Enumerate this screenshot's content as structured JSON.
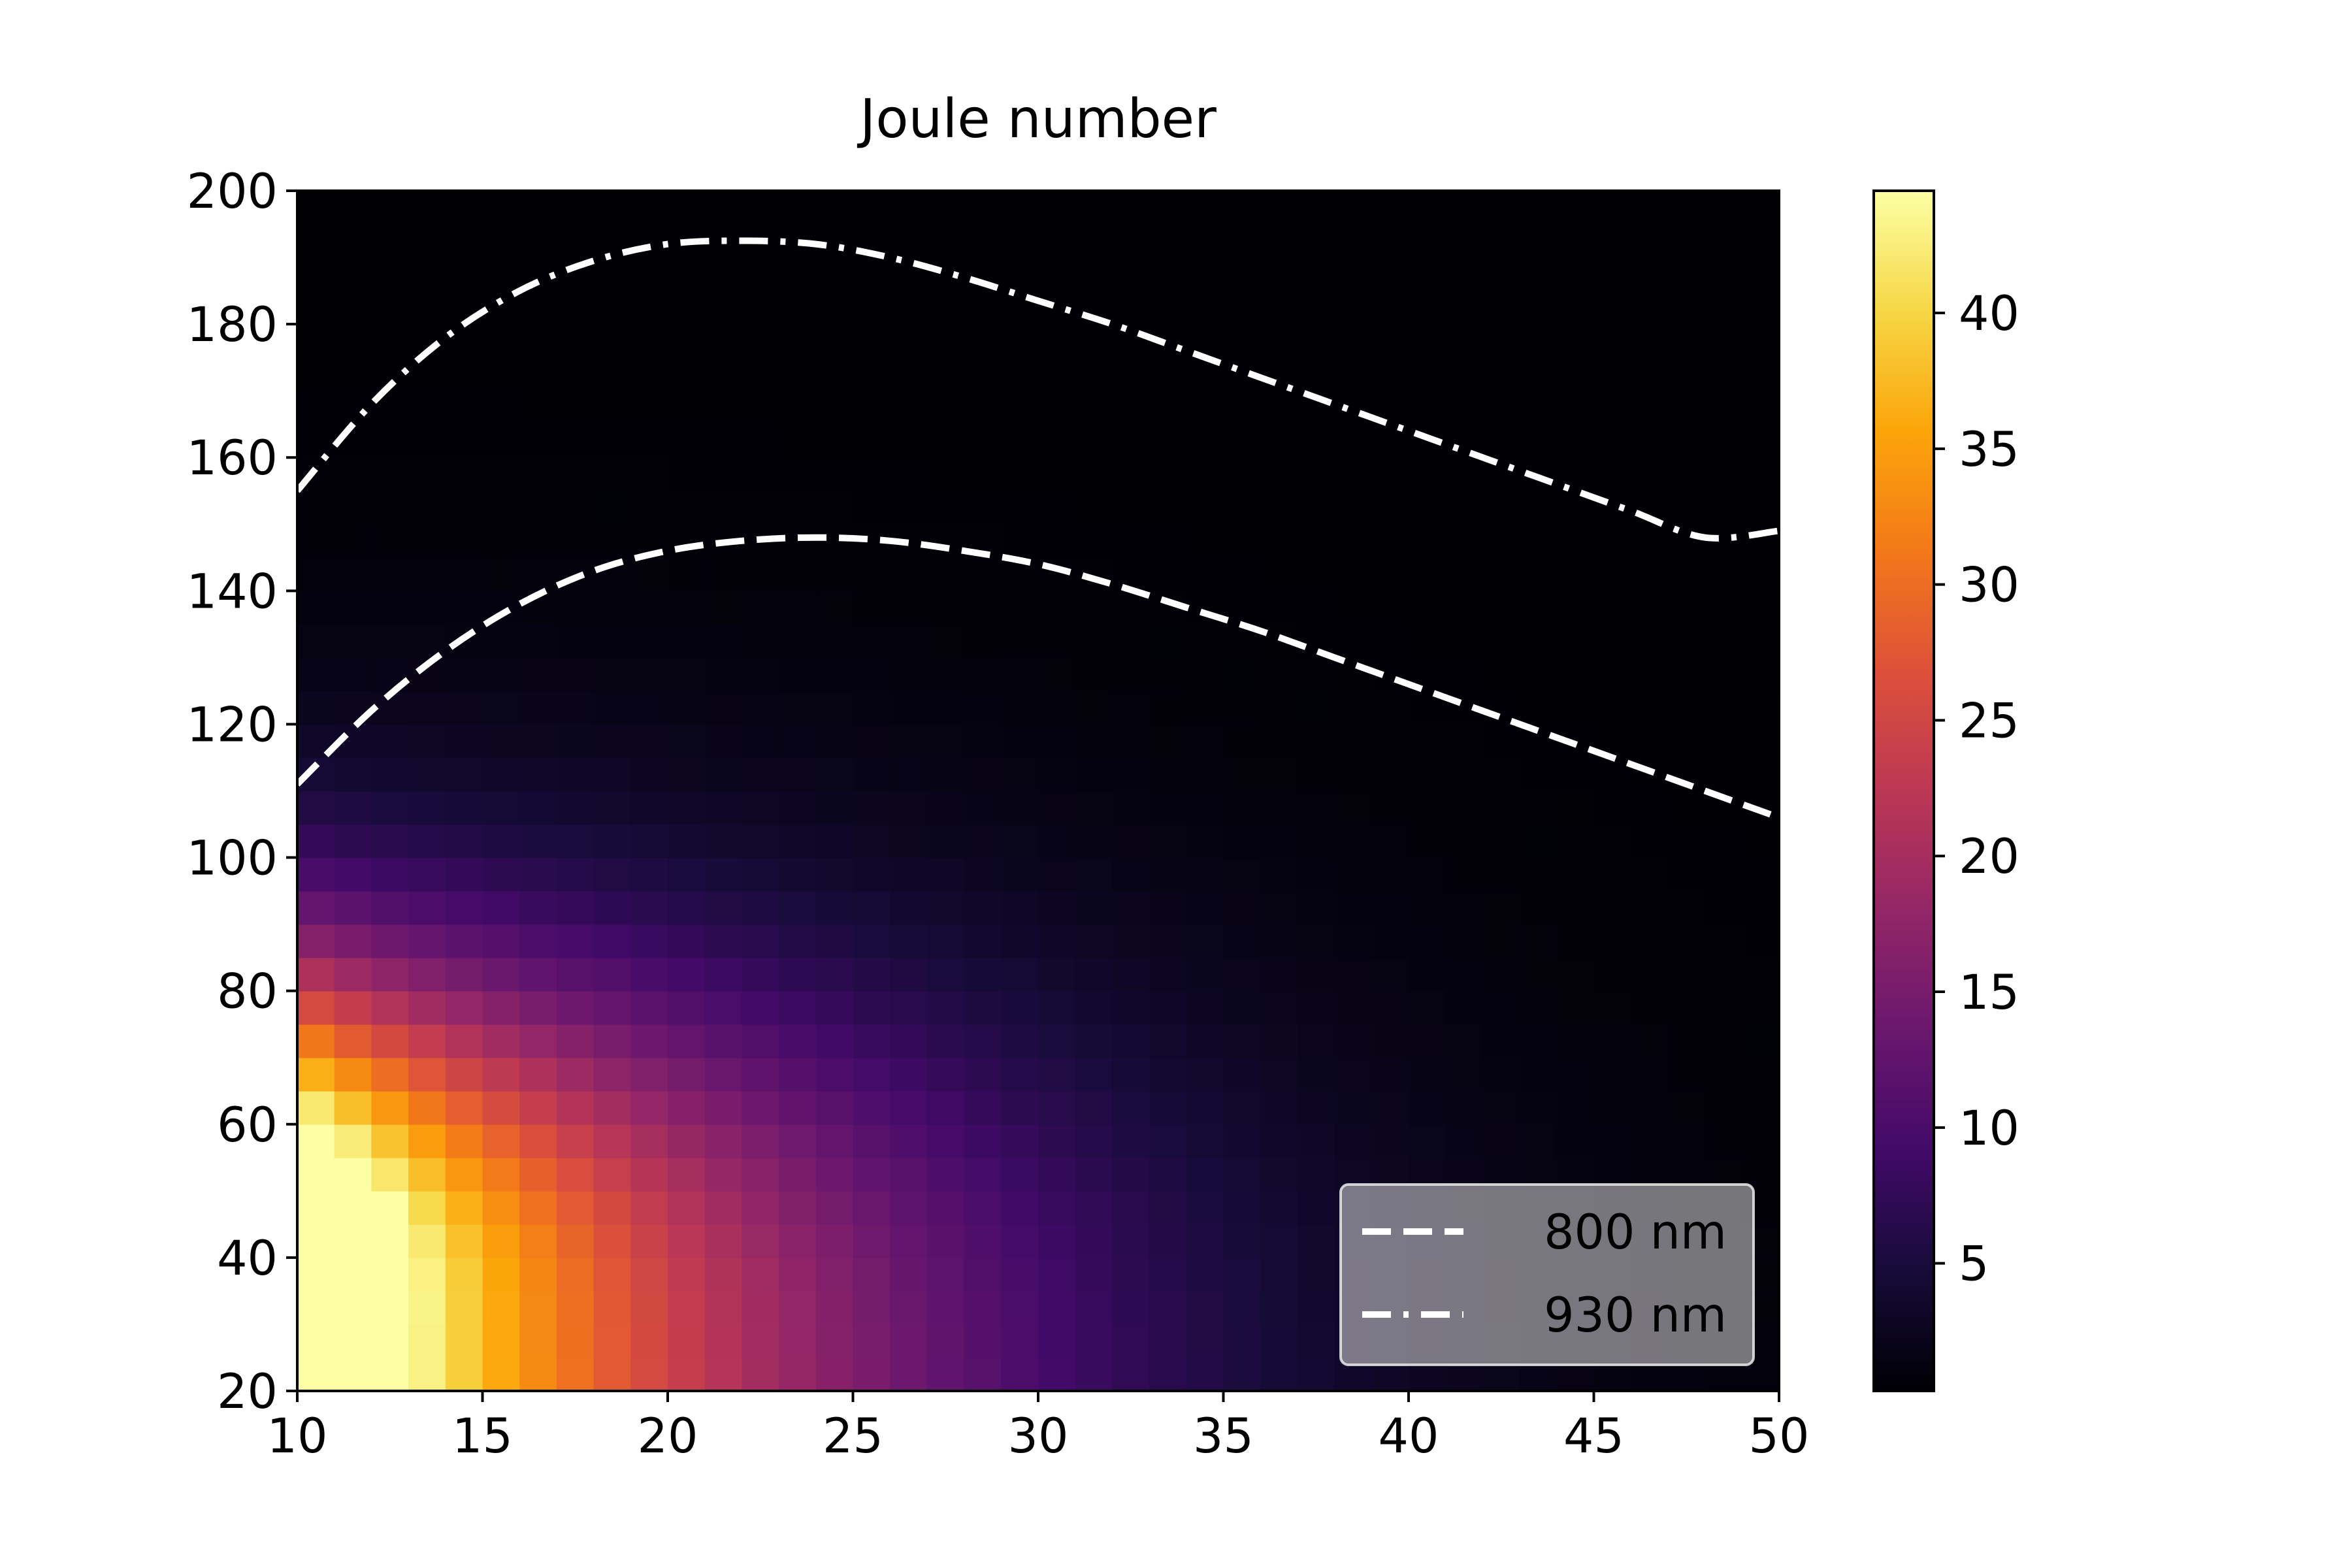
{
  "chart_data": {
    "type": "heatmap",
    "title": "Joule number",
    "xlabel": "",
    "ylabel": "",
    "xlim": [
      10,
      50
    ],
    "ylim": [
      20,
      200
    ],
    "x_ticks": [
      "10",
      "15",
      "20",
      "25",
      "30",
      "35",
      "40",
      "45",
      "50"
    ],
    "y_ticks": [
      "20",
      "40",
      "60",
      "80",
      "100",
      "120",
      "140",
      "160",
      "180",
      "200"
    ],
    "colormap": "inferno",
    "color_range": [
      0.3,
      44.5
    ],
    "colorbar_ticks": [
      "5",
      "10",
      "15",
      "20",
      "25",
      "30",
      "35",
      "40"
    ],
    "grid": false,
    "legend_position": "lower-right",
    "series": [
      {
        "name": "800 nm",
        "style": "dashed",
        "color": "#ffffff",
        "x": [
          10,
          12,
          14,
          16,
          18,
          20,
          22,
          24,
          26,
          28,
          30,
          32,
          34,
          36,
          38,
          40,
          42,
          44,
          46,
          48,
          50
        ],
        "y": [
          111,
          122,
          131,
          138,
          143,
          146,
          147.5,
          148,
          147.5,
          146,
          144,
          141,
          137.5,
          134,
          130,
          126,
          122,
          118,
          114,
          110,
          106
        ]
      },
      {
        "name": "930 nm",
        "style": "dashdot",
        "color": "#ffffff",
        "x": [
          10,
          12,
          14,
          16,
          18,
          20,
          22,
          24,
          26,
          28,
          30,
          32,
          34,
          36,
          38,
          40,
          42,
          44,
          46,
          48,
          50
        ],
        "y": [
          155,
          168,
          178,
          185,
          189.5,
          192,
          192.5,
          192,
          190,
          187,
          183.5,
          180,
          176,
          172,
          168,
          164,
          160,
          156,
          152,
          148,
          149
        ]
      }
    ]
  }
}
